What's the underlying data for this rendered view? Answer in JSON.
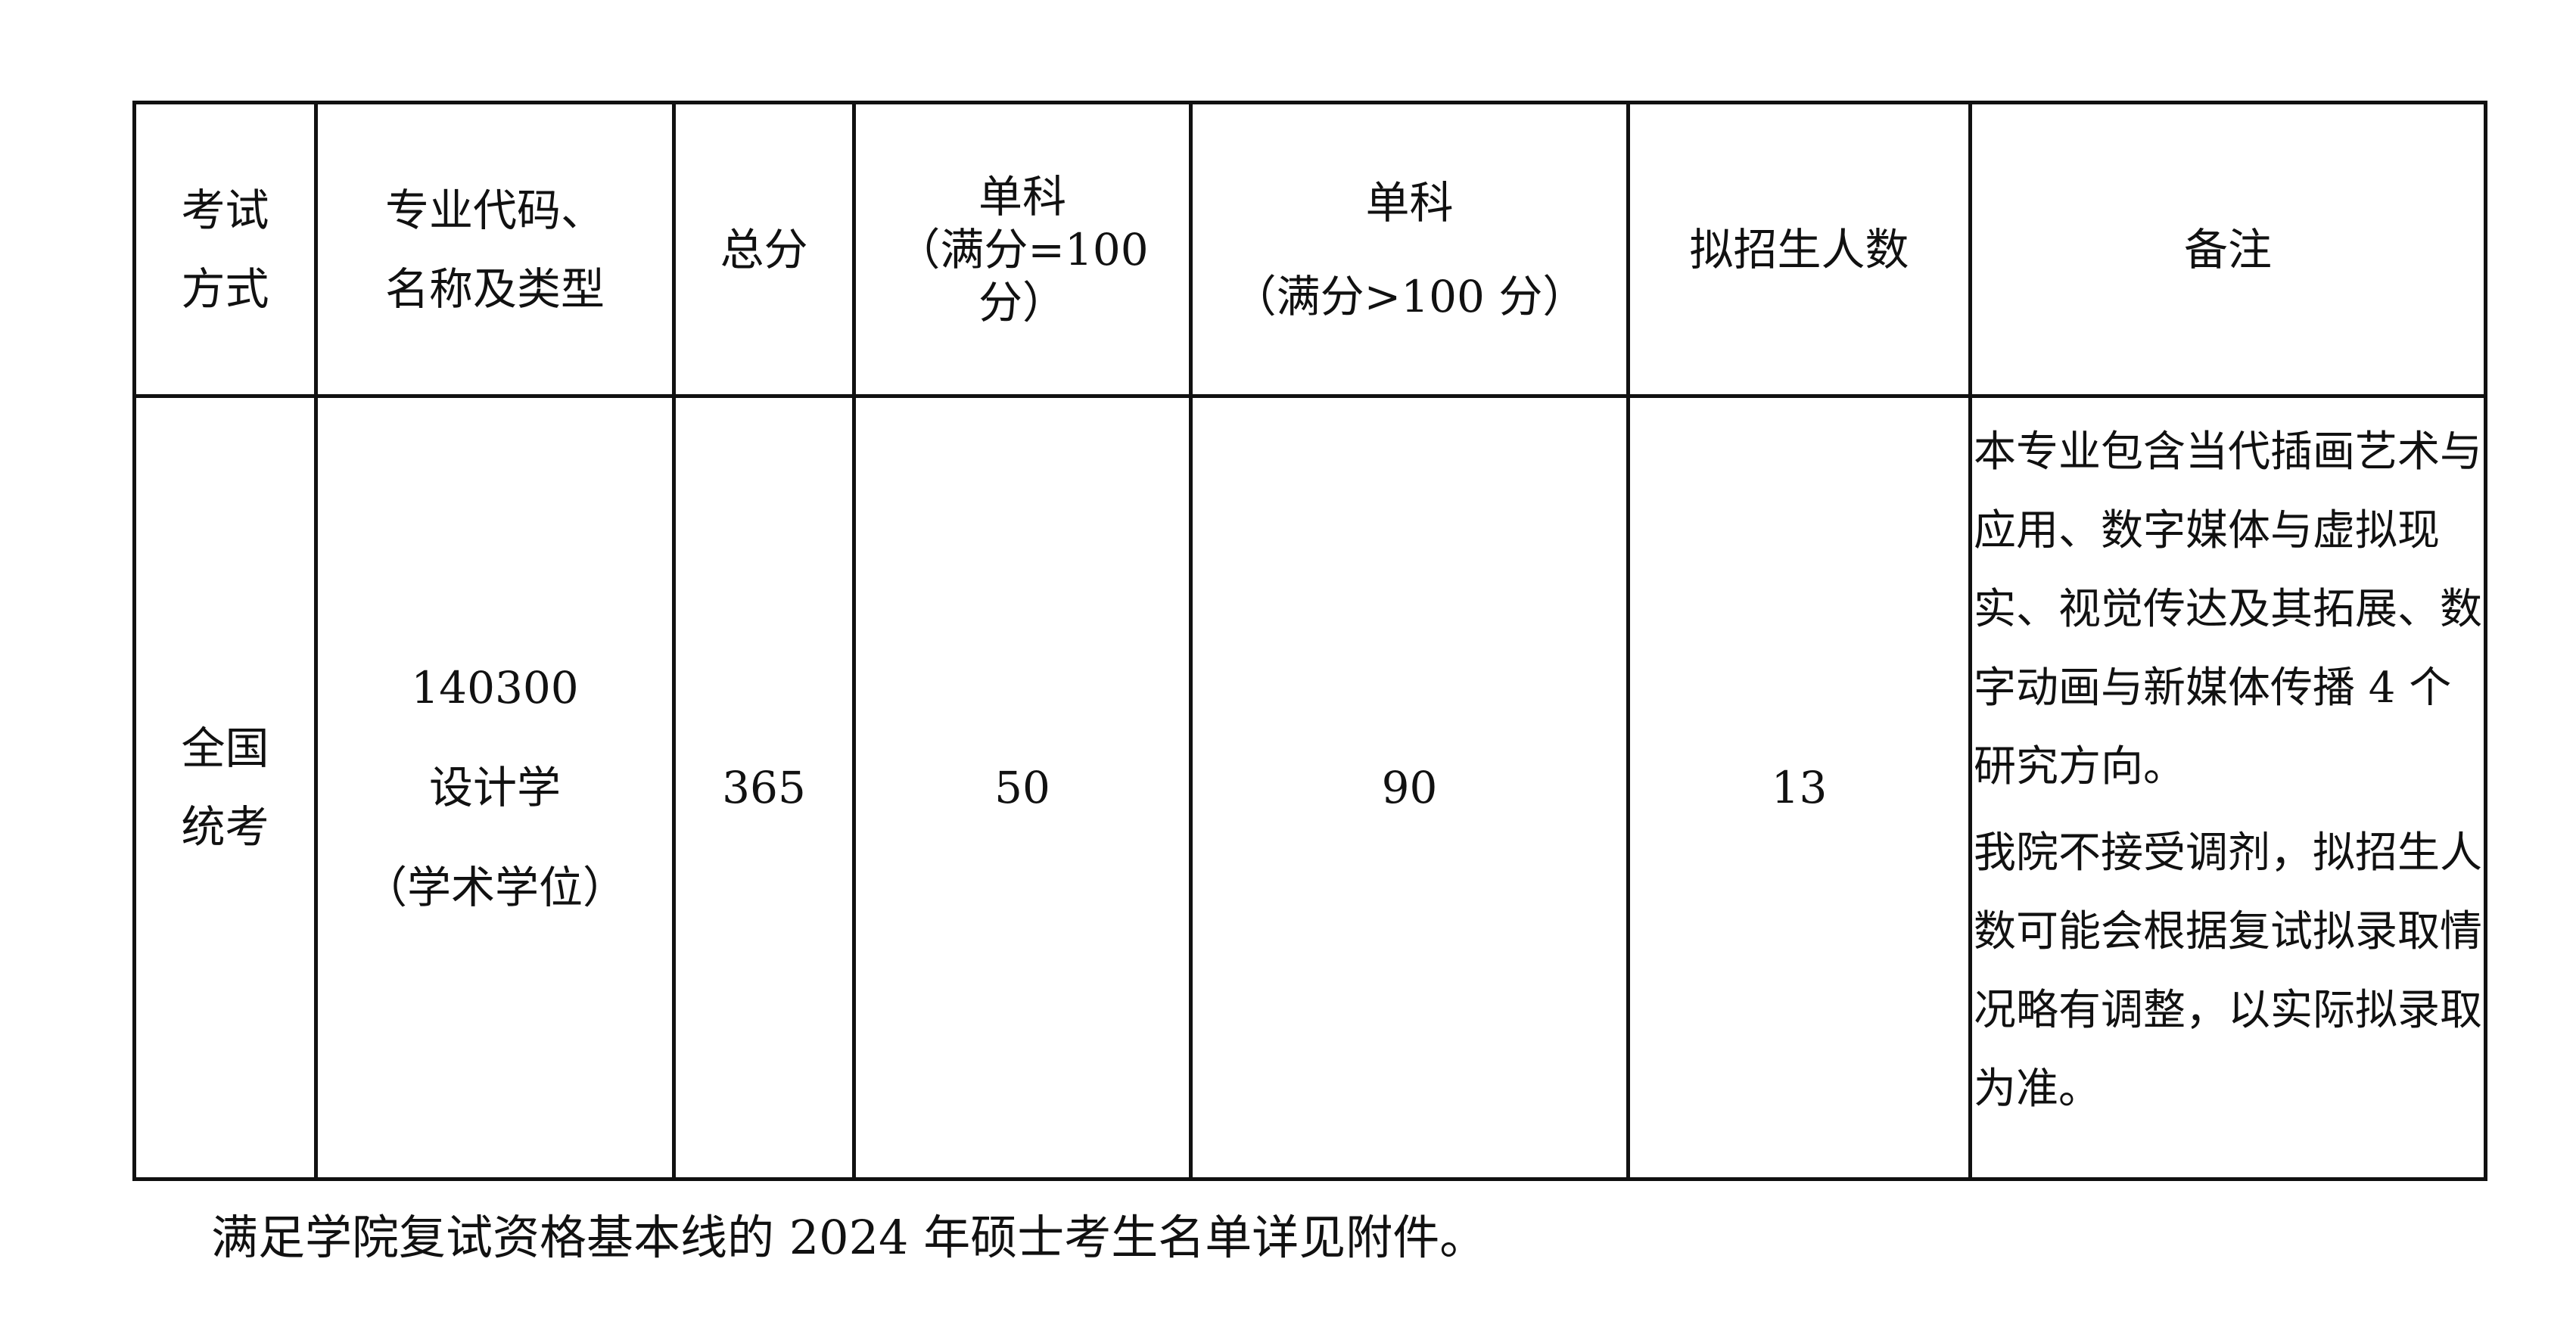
{
  "table": {
    "headers": [
      "考试方式",
      "专业代码、名称及类型",
      "总分",
      "单科（满分=100分）",
      "单科（满分>100分）",
      "拟招生人数",
      "备注"
    ],
    "header_lines": {
      "h0": [
        "考试",
        "方式"
      ],
      "h1": [
        "专业代码、",
        "名称及类型"
      ],
      "h3": [
        "单科",
        "（满分=100",
        "分）"
      ],
      "h4": [
        "单科",
        "（满分>100 分）"
      ]
    },
    "row": {
      "exam_method": "全国统考",
      "exam_method_lines": [
        "全国",
        "统考"
      ],
      "major_code": "140300",
      "major_name": "设计学",
      "major_type": "（学术学位）",
      "total": "365",
      "single_100": "50",
      "single_over_100": "90",
      "planned_enrollment": "13",
      "remark_1": "本专业包含当代插画艺术与应用、数字媒体与虚拟现实、视觉传达及其拓展、数字动画与新媒体传播 4 个研究方向。",
      "remark_2": "我院不接受调剂，拟招生人数可能会根据复试拟录取情况略有调整，以实际拟录取为准。"
    }
  },
  "footer": "满足学院复试资格基本线的 2024 年硕士考生名单详见附件。"
}
